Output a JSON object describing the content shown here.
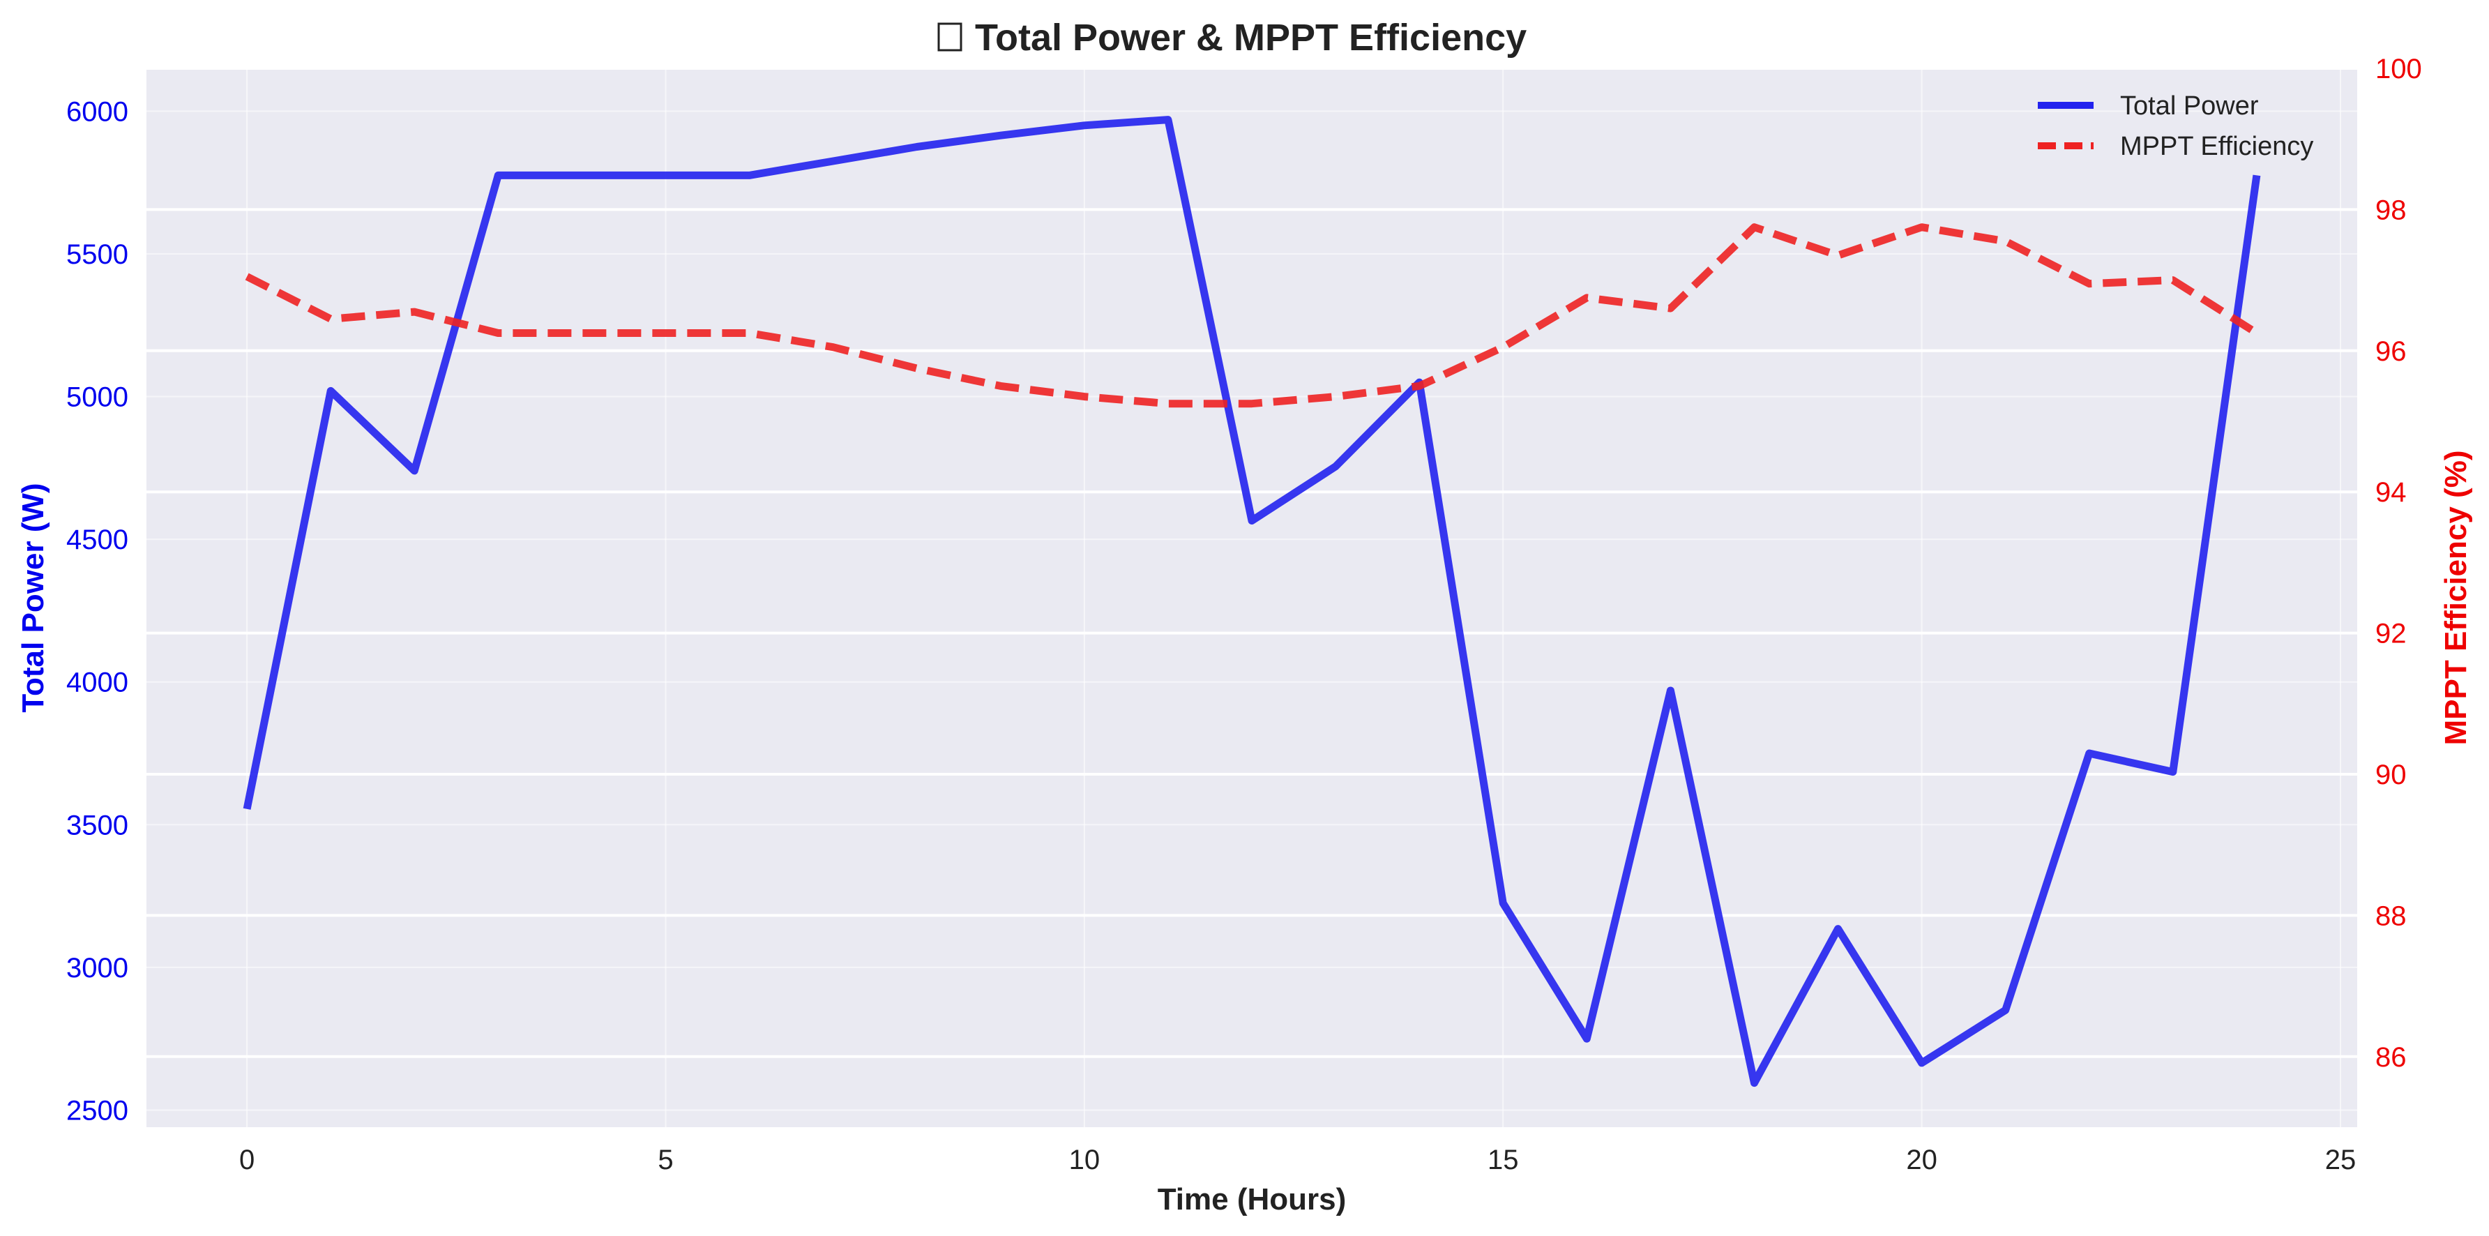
{
  "chart_data": {
    "type": "line",
    "title": "Total Power & MPPT Efficiency",
    "title_icon": "chart-emoji-placeholder",
    "xlabel": "Time (Hours)",
    "ylabel_left": "Total Power (W)",
    "ylabel_right": "MPPT Efficiency (%)",
    "x": [
      0,
      1,
      2,
      3,
      4,
      5,
      6,
      7,
      8,
      9,
      10,
      11,
      12,
      13,
      14,
      15,
      16,
      17,
      18,
      19,
      20,
      21,
      22,
      23,
      24
    ],
    "xlim": [
      -1.2,
      25.2
    ],
    "xticks": [
      0,
      5,
      10,
      15,
      20,
      25
    ],
    "ylim_left": [
      2440,
      6150
    ],
    "yticks_left": [
      2500,
      3000,
      3500,
      4000,
      4500,
      5000,
      5500,
      6000
    ],
    "ylim_right": [
      85,
      100
    ],
    "yticks_right": [
      86,
      88,
      90,
      92,
      94,
      96,
      98,
      100
    ],
    "grid": true,
    "legend": "top-right",
    "series": [
      {
        "name": "Total Power",
        "axis": "left",
        "style": "solid",
        "color": "#2222ee",
        "values": [
          3555,
          5020,
          4740,
          5775,
          5775,
          5775,
          5775,
          5825,
          5875,
          5915,
          5950,
          5970,
          4565,
          4755,
          5050,
          3225,
          2750,
          3970,
          2595,
          3135,
          2665,
          2850,
          3750,
          3685,
          5775
        ]
      },
      {
        "name": "MPPT Efficiency",
        "axis": "right",
        "style": "dashed",
        "color": "#ee2222",
        "values": [
          97.05,
          96.45,
          96.55,
          96.25,
          96.25,
          96.25,
          96.25,
          96.05,
          95.75,
          95.5,
          95.35,
          95.25,
          95.25,
          95.35,
          95.5,
          96.05,
          96.75,
          96.6,
          97.75,
          97.35,
          97.75,
          97.55,
          96.95,
          97.0,
          96.25
        ]
      }
    ],
    "colors": {
      "plot_background": "#eaeaf2",
      "grid": "#ffffff",
      "left_axis": "#0000ee",
      "right_axis": "#ee0000"
    }
  }
}
